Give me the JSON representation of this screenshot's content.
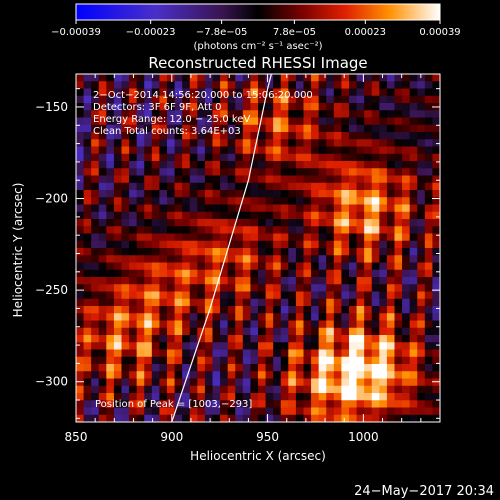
{
  "chart_data": {
    "type": "heatmap",
    "title": "Reconstructed RHESSI Image",
    "xlabel": "Heliocentric X (arcsec)",
    "ylabel": "Heliocentric Y (arcsec)",
    "xlim": [
      850,
      1040
    ],
    "ylim": [
      -322,
      -132
    ],
    "x_ticks": [
      850,
      900,
      950,
      1000
    ],
    "y_ticks": [
      -150,
      -200,
      -250,
      -300
    ],
    "x_tick_labels": [
      "850",
      "900",
      "950",
      "1000"
    ],
    "y_tick_labels": [
      "−150",
      "−200",
      "−250",
      "−300"
    ],
    "colorbar": {
      "min": -0.00039,
      "max": 0.00039,
      "ticks": [
        -0.00039,
        -0.00023,
        -7.8e-05,
        7.8e-05,
        0.00023,
        0.00039
      ],
      "tick_labels": [
        "−0.00039",
        "−0.00023",
        "−7.8e−05",
        "7.8e−05",
        "0.00023",
        "0.00039"
      ],
      "unit_label": "(photons cm⁻² s⁻¹ asec⁻²)"
    },
    "annotations": [
      "2−Oct−2014 14:56:20.000 to 15:06:20.000",
      "Detectors: 3F 6F 9F, Att 0",
      "Energy Range: 12.0 − 25.0 keV",
      "Clean    Total counts: 3.64E+03"
    ],
    "peak_label": "Position of Peak = [1003,−293]",
    "peak": [
      1003,
      -293
    ],
    "limb_points": [
      [
        900,
        -322
      ],
      [
        920,
        -260
      ],
      [
        940,
        -190
      ],
      [
        950,
        -140
      ],
      [
        952,
        -132
      ]
    ],
    "peak_flux": 0.00039
  },
  "timestamp": "24−May−2017 20:34"
}
